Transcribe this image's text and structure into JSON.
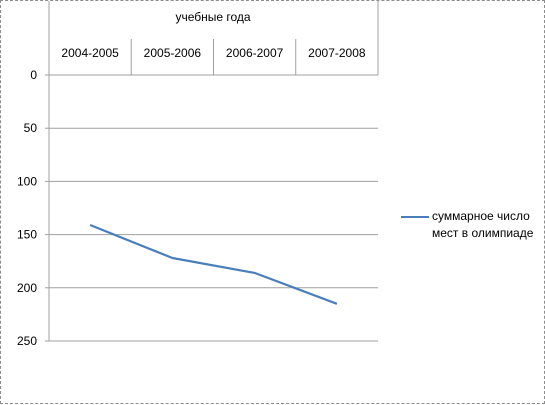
{
  "chart_data": {
    "type": "line",
    "title": "учебные года",
    "categories": [
      "2004-2005",
      "2005-2006",
      "2006-2007",
      "2007-2008"
    ],
    "series": [
      {
        "name": "суммарное число мест в олимпиаде",
        "values": [
          141,
          172,
          186,
          215
        ]
      }
    ],
    "ylim": [
      0,
      250
    ],
    "y_ticks": [
      0,
      50,
      100,
      150,
      200,
      250
    ],
    "y_axis_inverted": true,
    "x_axis_position": "top",
    "grid": true,
    "legend_position": "right",
    "series_color": "#4a7ebb"
  }
}
